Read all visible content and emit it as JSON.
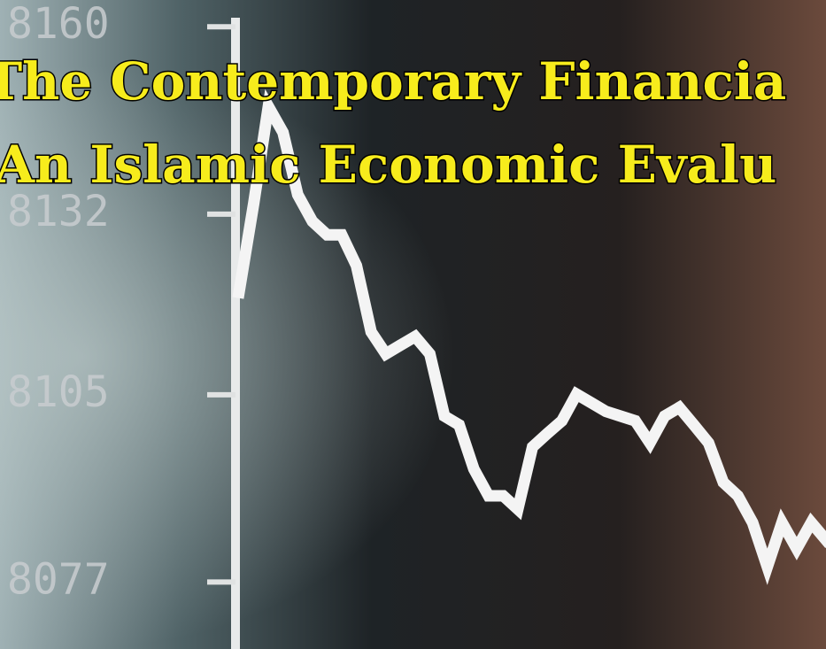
{
  "chart_data": {
    "type": "line",
    "title": "The Contemporary Financia",
    "subtitle": "An Islamic Economic Evalu",
    "x": [
      0,
      1,
      2,
      3,
      4,
      5,
      6,
      7,
      8,
      9,
      10,
      11,
      12,
      13,
      14,
      15,
      16,
      17,
      18,
      19,
      20,
      21,
      22,
      23,
      24,
      25,
      26,
      27,
      28,
      29,
      30,
      31,
      32,
      33,
      34,
      35,
      36,
      37,
      38,
      39,
      40
    ],
    "values": [
      8120.3,
      8133.6,
      8148.1,
      8144.2,
      8134.9,
      8130.9,
      8128.9,
      8128.9,
      8124.3,
      8114.4,
      8111.1,
      8112.4,
      8113.7,
      8111.1,
      8101.8,
      8100.5,
      8093.9,
      8089.9,
      8089.9,
      8087.9,
      8097.2,
      8099.2,
      8101.1,
      8105.1,
      8103.8,
      8102.5,
      8101.8,
      8101.1,
      8097.8,
      8101.8,
      8103.1,
      8100.5,
      8097.8,
      8091.9,
      8089.9,
      8085.9,
      8079.3,
      8085.9,
      8082,
      8085.9,
      8083.3
    ],
    "color": "#f4f4f4",
    "xlim": [
      0,
      40
    ],
    "ylim": [
      8067,
      8164
    ],
    "yticks": [
      8077,
      8105,
      8132,
      8160
    ]
  }
}
